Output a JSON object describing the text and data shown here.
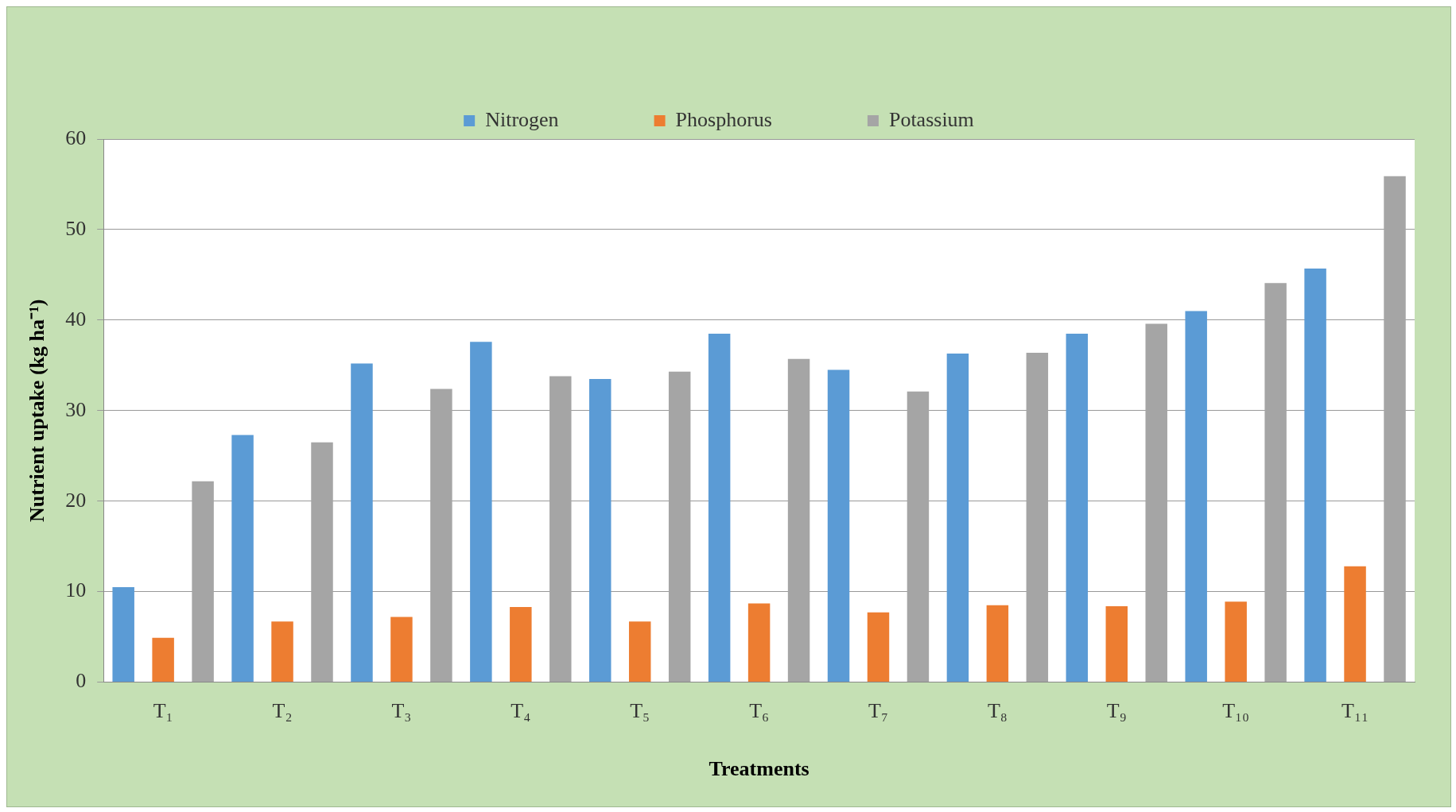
{
  "chart_data": {
    "type": "bar",
    "xlabel": "Treatments",
    "ylabel": "Nutrient uptake (kg ha⁻¹)",
    "categories": [
      "T₁",
      "T₂",
      "T₃",
      "T₄",
      "T₅",
      "T₆",
      "T₇",
      "T₈",
      "T₉",
      "T₁₀",
      "T₁₁"
    ],
    "series": [
      {
        "name": "Nitrogen",
        "color": "#5b9bd5",
        "values": [
          10.5,
          27.3,
          35.2,
          37.6,
          33.5,
          38.5,
          34.5,
          36.3,
          38.5,
          41.0,
          45.7
        ]
      },
      {
        "name": "Phosphorus",
        "color": "#ed7d31",
        "values": [
          4.9,
          6.7,
          7.2,
          8.3,
          6.7,
          8.7,
          7.7,
          8.5,
          8.4,
          8.9,
          12.8
        ]
      },
      {
        "name": "Potassium",
        "color": "#a5a5a5",
        "values": [
          22.2,
          26.5,
          32.4,
          33.8,
          34.3,
          35.7,
          32.1,
          36.4,
          39.6,
          44.1,
          55.9
        ]
      }
    ],
    "ylim": [
      0,
      60
    ],
    "yticks": [
      0,
      10,
      20,
      30,
      40,
      50,
      60
    ],
    "grid": "y",
    "legend": "top"
  }
}
